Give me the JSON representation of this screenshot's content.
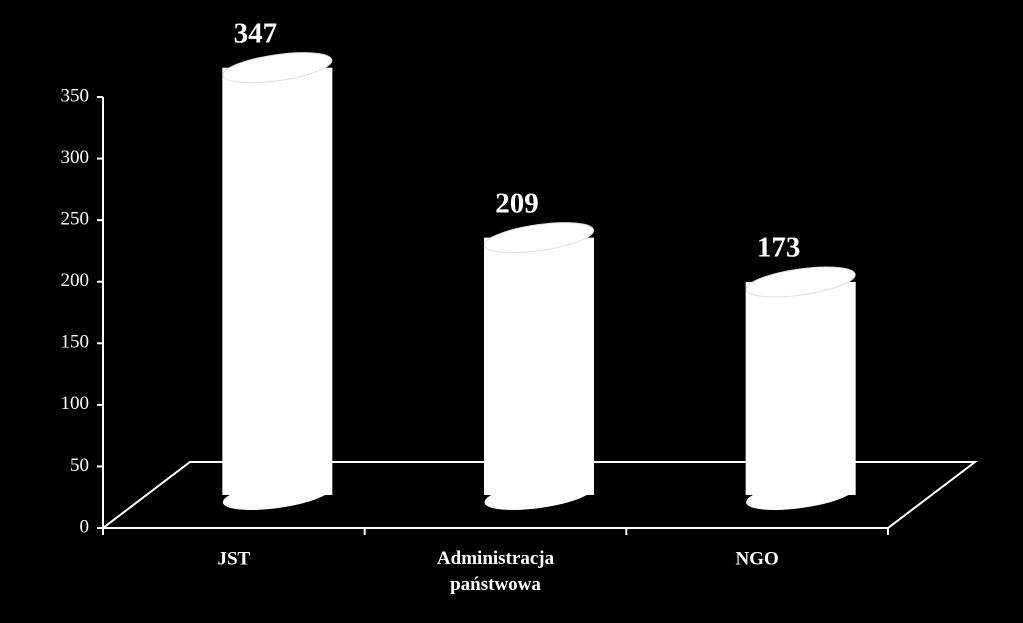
{
  "chart_data": {
    "type": "bar",
    "categories": [
      "JST",
      "Administracja państwowa",
      "NGO"
    ],
    "values": [
      347,
      209,
      173
    ],
    "color": "#ffffff",
    "ylim": [
      0,
      350
    ],
    "yticks": [
      0,
      50,
      100,
      150,
      200,
      250,
      300,
      350
    ]
  }
}
